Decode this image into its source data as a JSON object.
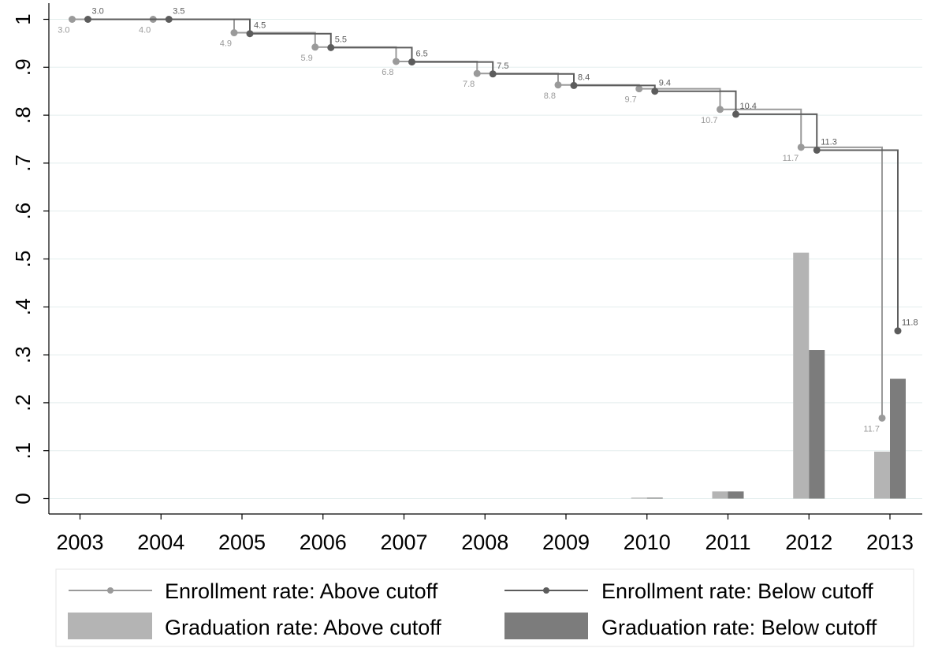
{
  "chart_data": {
    "type": "bar",
    "title": "",
    "xlabel": "",
    "ylabel": "",
    "categories": [
      "2003",
      "2004",
      "2005",
      "2006",
      "2007",
      "2008",
      "2009",
      "2010",
      "2011",
      "2012",
      "2013"
    ],
    "ylim": [
      0,
      1
    ],
    "yticks": [
      "0",
      ".1",
      ".2",
      ".3",
      ".4",
      ".5",
      ".6",
      ".7",
      ".8",
      ".9",
      "1"
    ],
    "grid": true,
    "legend_position": "bottom",
    "colors": {
      "above_line": "#9a9a9a",
      "below_line": "#5c5c5c",
      "above_bar": "#b4b4b4",
      "below_bar": "#7c7c7c",
      "grid": "#e3eeed"
    },
    "series": [
      {
        "name": "Enrollment rate: Above cutoff",
        "kind": "step-line",
        "values": [
          1.0,
          1.0,
          0.972,
          0.942,
          0.912,
          0.887,
          0.863,
          0.855,
          0.812,
          0.733,
          0.168
        ],
        "point_labels": [
          "3.0",
          "4.0",
          "4.9",
          "5.9",
          "6.8",
          "7.8",
          "8.8",
          "9.7",
          "10.7",
          "11.7",
          "11.7"
        ]
      },
      {
        "name": "Enrollment rate: Below cutoff",
        "kind": "step-line",
        "values": [
          1.0,
          1.0,
          0.97,
          0.941,
          0.911,
          0.886,
          0.862,
          0.85,
          0.802,
          0.727,
          0.35
        ],
        "point_labels": [
          "3.0",
          "3.5",
          "4.5",
          "5.5",
          "6.5",
          "7.5",
          "8.4",
          "9.4",
          "10.4",
          "11.3",
          "11.8"
        ]
      },
      {
        "name": "Graduation rate: Above cutoff",
        "kind": "bar",
        "values": [
          0,
          0,
          0,
          0,
          0,
          0,
          0,
          0.002,
          0.015,
          0.513,
          0.098
        ]
      },
      {
        "name": "Graduation rate: Below cutoff",
        "kind": "bar",
        "values": [
          0,
          0,
          0,
          0,
          0,
          0,
          0,
          0.002,
          0.015,
          0.31,
          0.25
        ]
      }
    ]
  }
}
